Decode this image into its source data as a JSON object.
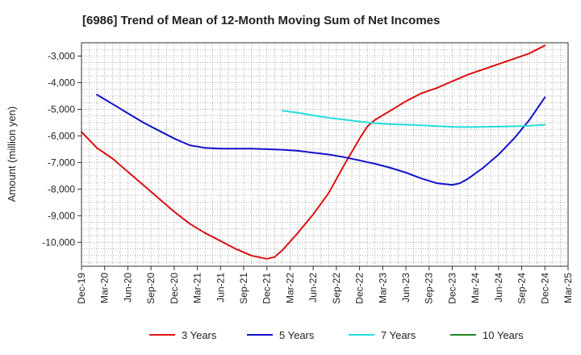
{
  "chart_data": {
    "type": "line",
    "title": "[6986]  Trend of Mean of 12-Month Moving Sum of Net Incomes",
    "xlabel": "",
    "ylabel": "Amount (million yen)",
    "ylim": [
      -10900,
      -2500
    ],
    "yticks": [
      -3000,
      -4000,
      -5000,
      -6000,
      -7000,
      -8000,
      -9000,
      -10000
    ],
    "ytick_labels": [
      "-3,000",
      "-4,000",
      "-5,000",
      "-6,000",
      "-7,000",
      "-8,000",
      "-9,000",
      "-10,000"
    ],
    "x_start": "Dec-19",
    "x_end": "Mar-25",
    "x_ticks": [
      "Dec-19",
      "Mar-20",
      "Jun-20",
      "Sep-20",
      "Dec-20",
      "Mar-21",
      "Jun-21",
      "Sep-21",
      "Dec-21",
      "Mar-22",
      "Jun-22",
      "Sep-22",
      "Dec-22",
      "Mar-23",
      "Jun-23",
      "Sep-23",
      "Dec-23",
      "Mar-24",
      "Jun-24",
      "Sep-24",
      "Dec-24",
      "Mar-25"
    ],
    "grid": true,
    "legend_position": "bottom",
    "series": [
      {
        "name": "3 Years",
        "color": "#dd1111",
        "points": [
          [
            "Dec-19",
            -5850
          ],
          [
            "Feb-20",
            -6450
          ],
          [
            "Apr-20",
            -6850
          ],
          [
            "Jun-20",
            -7350
          ],
          [
            "Aug-20",
            -7850
          ],
          [
            "Oct-20",
            -8350
          ],
          [
            "Dec-20",
            -8850
          ],
          [
            "Feb-21",
            -9300
          ],
          [
            "Apr-21",
            -9650
          ],
          [
            "Jun-21",
            -9950
          ],
          [
            "Aug-21",
            -10250
          ],
          [
            "Oct-21",
            -10500
          ],
          [
            "Dec-21",
            -10620
          ],
          [
            "Jan-22",
            -10550
          ],
          [
            "Feb-22",
            -10300
          ],
          [
            "Apr-22",
            -9650
          ],
          [
            "Jun-22",
            -8950
          ],
          [
            "Aug-22",
            -8150
          ],
          [
            "Oct-22",
            -7100
          ],
          [
            "Dec-22",
            -6100
          ],
          [
            "Jan-23",
            -5650
          ],
          [
            "Feb-23",
            -5400
          ],
          [
            "Apr-23",
            -5050
          ],
          [
            "Jun-23",
            -4700
          ],
          [
            "Aug-23",
            -4400
          ],
          [
            "Oct-23",
            -4200
          ],
          [
            "Dec-23",
            -3950
          ],
          [
            "Feb-24",
            -3700
          ],
          [
            "Apr-24",
            -3500
          ],
          [
            "Jun-24",
            -3300
          ],
          [
            "Aug-24",
            -3100
          ],
          [
            "Oct-24",
            -2900
          ],
          [
            "Dec-24",
            -2600
          ]
        ]
      },
      {
        "name": "5 Years",
        "color": "#1111cc",
        "points": [
          [
            "Feb-20",
            -4450
          ],
          [
            "Apr-20",
            -4800
          ],
          [
            "Jun-20",
            -5150
          ],
          [
            "Aug-20",
            -5500
          ],
          [
            "Oct-20",
            -5800
          ],
          [
            "Dec-20",
            -6100
          ],
          [
            "Feb-21",
            -6350
          ],
          [
            "Apr-21",
            -6450
          ],
          [
            "Jun-21",
            -6480
          ],
          [
            "Aug-21",
            -6480
          ],
          [
            "Oct-21",
            -6480
          ],
          [
            "Dec-21",
            -6500
          ],
          [
            "Feb-22",
            -6520
          ],
          [
            "Apr-22",
            -6560
          ],
          [
            "Jun-22",
            -6630
          ],
          [
            "Aug-22",
            -6700
          ],
          [
            "Oct-22",
            -6800
          ],
          [
            "Dec-22",
            -6920
          ],
          [
            "Feb-23",
            -7050
          ],
          [
            "Apr-23",
            -7200
          ],
          [
            "Jun-23",
            -7380
          ],
          [
            "Aug-23",
            -7600
          ],
          [
            "Oct-23",
            -7780
          ],
          [
            "Dec-23",
            -7840
          ],
          [
            "Jan-24",
            -7780
          ],
          [
            "Feb-24",
            -7620
          ],
          [
            "Apr-24",
            -7200
          ],
          [
            "Jun-24",
            -6700
          ],
          [
            "Aug-24",
            -6100
          ],
          [
            "Oct-24",
            -5400
          ],
          [
            "Dec-24",
            -4550
          ]
        ]
      },
      {
        "name": "7 Years",
        "color": "#22dddd",
        "points": [
          [
            "Feb-22",
            -5050
          ],
          [
            "Apr-22",
            -5130
          ],
          [
            "Jun-22",
            -5230
          ],
          [
            "Aug-22",
            -5320
          ],
          [
            "Oct-22",
            -5390
          ],
          [
            "Dec-22",
            -5460
          ],
          [
            "Feb-23",
            -5530
          ],
          [
            "Apr-23",
            -5560
          ],
          [
            "Jun-23",
            -5580
          ],
          [
            "Aug-23",
            -5600
          ],
          [
            "Oct-23",
            -5630
          ],
          [
            "Dec-23",
            -5660
          ],
          [
            "Feb-24",
            -5670
          ],
          [
            "Apr-24",
            -5660
          ],
          [
            "Jun-24",
            -5650
          ],
          [
            "Aug-24",
            -5640
          ],
          [
            "Oct-24",
            -5620
          ],
          [
            "Dec-24",
            -5580
          ]
        ]
      },
      {
        "name": "10 Years",
        "color": "#228822",
        "points": []
      }
    ]
  }
}
